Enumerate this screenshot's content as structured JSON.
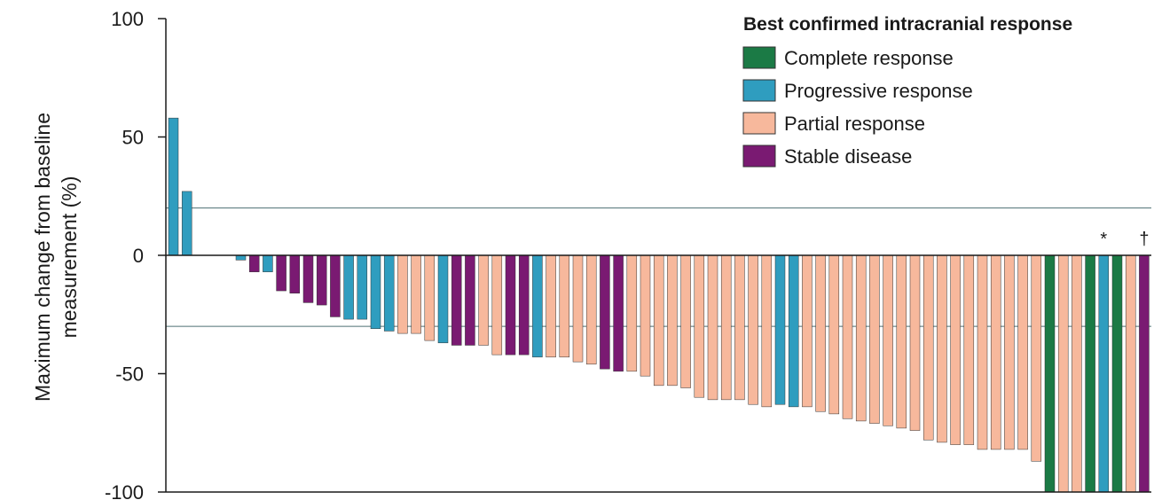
{
  "chart_data": {
    "type": "bar",
    "title": "",
    "xlabel": "",
    "ylabel_lines": [
      "Maximum change from baseline",
      "measurement (%)"
    ],
    "ylim": [
      -100,
      100
    ],
    "yticks": [
      {
        "value": 100,
        "label": "100"
      },
      {
        "value": 50,
        "label": "50"
      },
      {
        "value": 0,
        "label": "0"
      },
      {
        "value": -50,
        "label": "-50"
      },
      {
        "value": -100,
        "label": "-100"
      }
    ],
    "reference_lines": [
      20,
      -30
    ],
    "legend": {
      "title": "Best confirmed intracranial response",
      "position": "top-right",
      "entries": [
        {
          "key": "CR",
          "label": "Complete response"
        },
        {
          "key": "PD",
          "label": "Progressive response"
        },
        {
          "key": "PR",
          "label": "Partial response"
        },
        {
          "key": "SD",
          "label": "Stable disease"
        }
      ]
    },
    "colors": {
      "CR": "#1b7a45",
      "PD": "#2f9dbf",
      "PR": "#f7b89c",
      "SD": "#7a1a72"
    },
    "bars": [
      {
        "value": 58,
        "category": "PD"
      },
      {
        "value": 27,
        "category": "PD"
      },
      {
        "value": 0,
        "category": ""
      },
      {
        "value": 0,
        "category": ""
      },
      {
        "value": 0,
        "category": ""
      },
      {
        "value": -2,
        "category": "PD"
      },
      {
        "value": -7,
        "category": "SD"
      },
      {
        "value": -7,
        "category": "PD"
      },
      {
        "value": -15,
        "category": "SD"
      },
      {
        "value": -16,
        "category": "SD"
      },
      {
        "value": -20,
        "category": "SD"
      },
      {
        "value": -21,
        "category": "SD"
      },
      {
        "value": -26,
        "category": "SD"
      },
      {
        "value": -27,
        "category": "PD"
      },
      {
        "value": -27,
        "category": "PD"
      },
      {
        "value": -31,
        "category": "PD"
      },
      {
        "value": -32,
        "category": "PD"
      },
      {
        "value": -33,
        "category": "PR"
      },
      {
        "value": -33,
        "category": "PR"
      },
      {
        "value": -36,
        "category": "PR"
      },
      {
        "value": -37,
        "category": "PD"
      },
      {
        "value": -38,
        "category": "SD"
      },
      {
        "value": -38,
        "category": "SD"
      },
      {
        "value": -38,
        "category": "PR"
      },
      {
        "value": -42,
        "category": "PR"
      },
      {
        "value": -42,
        "category": "SD"
      },
      {
        "value": -42,
        "category": "SD"
      },
      {
        "value": -43,
        "category": "PD"
      },
      {
        "value": -43,
        "category": "PR"
      },
      {
        "value": -43,
        "category": "PR"
      },
      {
        "value": -45,
        "category": "PR"
      },
      {
        "value": -46,
        "category": "PR"
      },
      {
        "value": -48,
        "category": "SD"
      },
      {
        "value": -49,
        "category": "SD"
      },
      {
        "value": -49,
        "category": "PR"
      },
      {
        "value": -51,
        "category": "PR"
      },
      {
        "value": -55,
        "category": "PR"
      },
      {
        "value": -55,
        "category": "PR"
      },
      {
        "value": -56,
        "category": "PR"
      },
      {
        "value": -60,
        "category": "PR"
      },
      {
        "value": -61,
        "category": "PR"
      },
      {
        "value": -61,
        "category": "PR"
      },
      {
        "value": -61,
        "category": "PR"
      },
      {
        "value": -63,
        "category": "PR"
      },
      {
        "value": -64,
        "category": "PR"
      },
      {
        "value": -63,
        "category": "PD"
      },
      {
        "value": -64,
        "category": "PD"
      },
      {
        "value": -64,
        "category": "PR"
      },
      {
        "value": -66,
        "category": "PR"
      },
      {
        "value": -67,
        "category": "PR"
      },
      {
        "value": -69,
        "category": "PR"
      },
      {
        "value": -70,
        "category": "PR"
      },
      {
        "value": -71,
        "category": "PR"
      },
      {
        "value": -72,
        "category": "PR"
      },
      {
        "value": -73,
        "category": "PR"
      },
      {
        "value": -74,
        "category": "PR"
      },
      {
        "value": -78,
        "category": "PR"
      },
      {
        "value": -79,
        "category": "PR"
      },
      {
        "value": -80,
        "category": "PR"
      },
      {
        "value": -80,
        "category": "PR"
      },
      {
        "value": -82,
        "category": "PR"
      },
      {
        "value": -82,
        "category": "PR"
      },
      {
        "value": -82,
        "category": "PR"
      },
      {
        "value": -82,
        "category": "PR"
      },
      {
        "value": -87,
        "category": "PR"
      },
      {
        "value": -100,
        "category": "CR"
      },
      {
        "value": -100,
        "category": "PR"
      },
      {
        "value": -100,
        "category": "PR"
      },
      {
        "value": -100,
        "category": "CR"
      },
      {
        "value": -100,
        "category": "PD",
        "marker": "*"
      },
      {
        "value": -100,
        "category": "CR"
      },
      {
        "value": -100,
        "category": "PR"
      },
      {
        "value": -100,
        "category": "SD",
        "marker": "†"
      }
    ]
  }
}
